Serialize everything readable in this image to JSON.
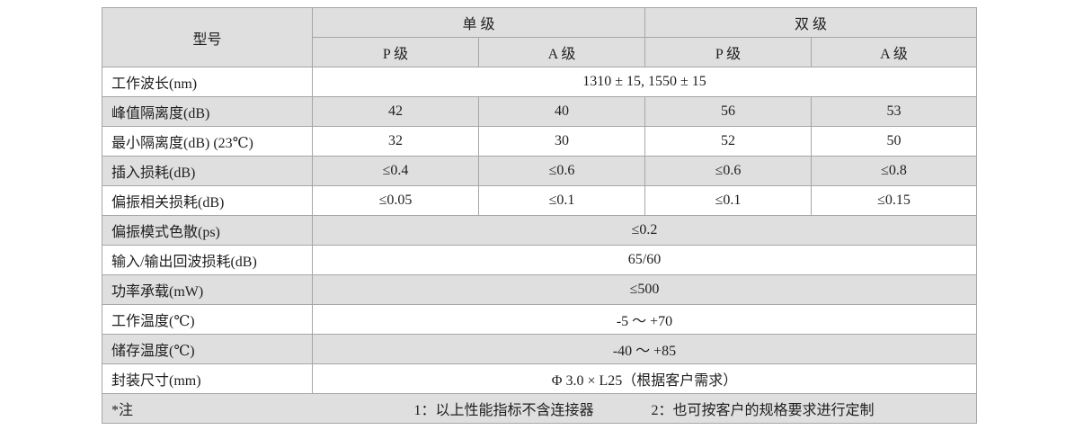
{
  "colors": {
    "row_shade": "#dfdfdf",
    "border": "#a6a6a6",
    "text": "#1f1f1f",
    "page_bg": "#ffffff"
  },
  "table": {
    "header": {
      "model_label": "型号",
      "groups": [
        {
          "label": "单 级"
        },
        {
          "label": "双 级"
        }
      ],
      "subcolumns": [
        "P 级",
        "A 级",
        "P 级",
        "A 级"
      ]
    },
    "rows": [
      {
        "label": "工作波长(nm)",
        "merged_value": "1310 ± 15, 1550 ± 15",
        "shaded": false
      },
      {
        "label": "峰值隔离度(dB)",
        "values": [
          "42",
          "40",
          "56",
          "53"
        ],
        "shaded": true
      },
      {
        "label": "最小隔离度(dB) (23℃)",
        "values": [
          "32",
          "30",
          "52",
          "50"
        ],
        "shaded": false
      },
      {
        "label": "插入损耗(dB)",
        "values": [
          "≤0.4",
          "≤0.6",
          "≤0.6",
          "≤0.8"
        ],
        "shaded": true
      },
      {
        "label": "偏振相关损耗(dB)",
        "values": [
          "≤0.05",
          "≤0.1",
          "≤0.1",
          "≤0.15"
        ],
        "shaded": false
      },
      {
        "label": "偏振模式色散(ps)",
        "merged_value": "≤0.2",
        "shaded": true
      },
      {
        "label": "输入/输出回波损耗(dB)",
        "merged_value": "65/60",
        "shaded": false
      },
      {
        "label": "功率承载(mW)",
        "merged_value": "≤500",
        "shaded": true
      },
      {
        "label": "工作温度(℃)",
        "merged_value": "-5 ～ +70",
        "shaded": false
      },
      {
        "label": "储存温度(℃)",
        "merged_value": "-40 ～ +85",
        "shaded": true
      },
      {
        "label": "封装尺寸(mm)",
        "merged_value": "Φ 3.0 × L25（根据客户需求）",
        "shaded": false
      }
    ],
    "note": {
      "label": "*注",
      "items": [
        "1：以上性能指标不含连接器",
        "2：也可按客户的规格要求进行定制"
      ],
      "shaded": true
    }
  }
}
